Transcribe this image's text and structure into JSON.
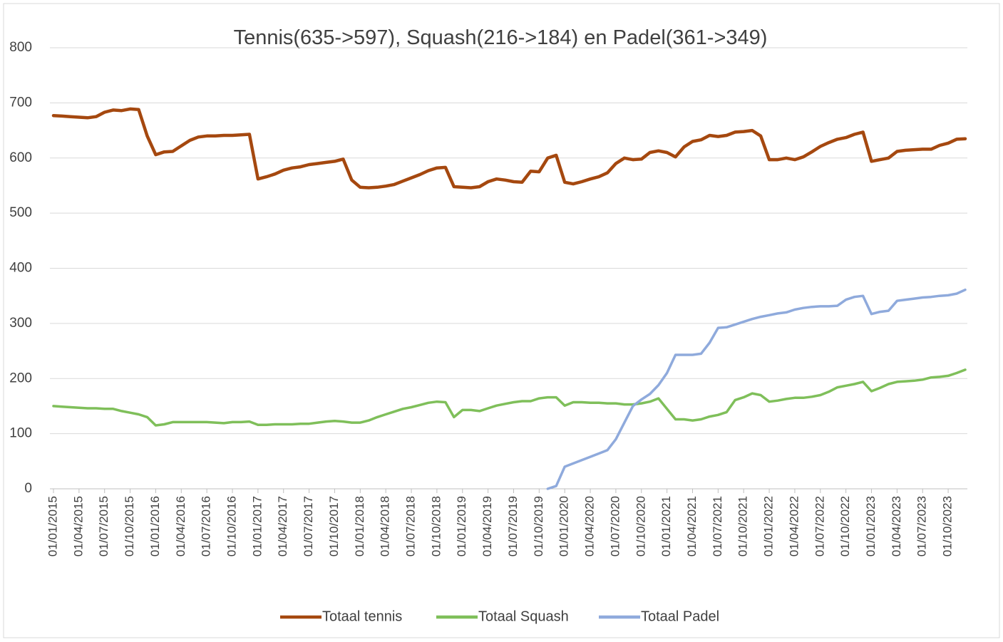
{
  "chart_data": {
    "type": "line",
    "title": "Tennis(635->597), Squash(216->184)  en Padel(361->349)",
    "x": [
      "01/01/2015",
      "01/02/2015",
      "01/03/2015",
      "01/04/2015",
      "01/05/2015",
      "01/06/2015",
      "01/07/2015",
      "01/08/2015",
      "01/09/2015",
      "01/10/2015",
      "01/11/2015",
      "01/12/2015",
      "01/01/2016",
      "01/02/2016",
      "01/03/2016",
      "01/04/2016",
      "01/05/2016",
      "01/06/2016",
      "01/07/2016",
      "01/08/2016",
      "01/09/2016",
      "01/10/2016",
      "01/11/2016",
      "01/12/2016",
      "01/01/2017",
      "01/02/2017",
      "01/03/2017",
      "01/04/2017",
      "01/05/2017",
      "01/06/2017",
      "01/07/2017",
      "01/08/2017",
      "01/09/2017",
      "01/10/2017",
      "01/11/2017",
      "01/12/2017",
      "01/01/2018",
      "01/02/2018",
      "01/03/2018",
      "01/04/2018",
      "01/05/2018",
      "01/06/2018",
      "01/07/2018",
      "01/08/2018",
      "01/09/2018",
      "01/10/2018",
      "01/11/2018",
      "01/12/2018",
      "01/01/2019",
      "01/02/2019",
      "01/03/2019",
      "01/04/2019",
      "01/05/2019",
      "01/06/2019",
      "01/07/2019",
      "01/08/2019",
      "01/09/2019",
      "01/10/2019",
      "01/11/2019",
      "01/12/2019",
      "01/01/2020",
      "01/02/2020",
      "01/03/2020",
      "01/04/2020",
      "01/05/2020",
      "01/06/2020",
      "01/07/2020",
      "01/08/2020",
      "01/09/2020",
      "01/10/2020",
      "01/11/2020",
      "01/12/2020",
      "01/01/2021",
      "01/02/2021",
      "01/03/2021",
      "01/04/2021",
      "01/05/2021",
      "01/06/2021",
      "01/07/2021",
      "01/08/2021",
      "01/09/2021",
      "01/10/2021",
      "01/11/2021",
      "01/12/2021",
      "01/01/2022",
      "01/02/2022",
      "01/03/2022",
      "01/04/2022",
      "01/05/2022",
      "01/06/2022",
      "01/07/2022",
      "01/08/2022",
      "01/09/2022",
      "01/10/2022",
      "01/11/2022",
      "01/12/2022",
      "01/01/2023",
      "01/02/2023",
      "01/03/2023",
      "01/04/2023",
      "01/05/2023",
      "01/06/2023",
      "01/07/2023",
      "01/08/2023",
      "01/09/2023",
      "01/10/2023",
      "01/11/2023",
      "01/12/2023"
    ],
    "xticks": [
      "01/01/2015",
      "01/04/2015",
      "01/07/2015",
      "01/10/2015",
      "01/01/2016",
      "01/04/2016",
      "01/07/2016",
      "01/10/2016",
      "01/01/2017",
      "01/04/2017",
      "01/07/2017",
      "01/10/2017",
      "01/01/2018",
      "01/04/2018",
      "01/07/2018",
      "01/10/2018",
      "01/01/2019",
      "01/04/2019",
      "01/07/2019",
      "01/10/2019",
      "01/01/2020",
      "01/04/2020",
      "01/07/2020",
      "01/10/2020",
      "01/01/2021",
      "01/04/2021",
      "01/07/2021",
      "01/10/2021",
      "01/01/2022",
      "01/04/2022",
      "01/07/2022",
      "01/10/2022",
      "01/01/2023",
      "01/04/2023",
      "01/07/2023",
      "01/10/2023"
    ],
    "ylim": [
      0,
      800
    ],
    "yticks": [
      0,
      100,
      200,
      300,
      400,
      500,
      600,
      700,
      800
    ],
    "grid": true,
    "legend": "bottom",
    "series": [
      {
        "name": "Totaal tennis",
        "color": "#a5480f",
        "values": [
          677,
          676,
          675,
          674,
          673,
          675,
          683,
          687,
          686,
          689,
          688,
          640,
          606,
          611,
          612,
          622,
          632,
          638,
          640,
          640,
          641,
          641,
          642,
          643,
          562,
          566,
          571,
          578,
          582,
          584,
          588,
          590,
          592,
          594,
          598,
          560,
          547,
          546,
          547,
          549,
          552,
          558,
          564,
          570,
          577,
          582,
          583,
          548,
          547,
          546,
          548,
          557,
          562,
          560,
          557,
          556,
          576,
          575,
          600,
          605,
          556,
          553,
          557,
          562,
          566,
          573,
          590,
          600,
          597,
          598,
          610,
          613,
          610,
          602,
          620,
          630,
          633,
          641,
          639,
          641,
          647,
          648,
          650,
          640,
          597,
          597,
          600,
          597,
          602,
          611,
          621,
          628,
          634,
          637,
          643,
          647,
          594,
          597,
          600,
          612,
          614,
          615,
          616,
          616,
          623,
          627,
          634,
          635
        ]
      },
      {
        "name": "Totaal Squash",
        "color": "#7fbf5a",
        "values": [
          150,
          149,
          148,
          147,
          146,
          146,
          145,
          145,
          141,
          138,
          135,
          130,
          115,
          117,
          121,
          121,
          121,
          121,
          121,
          120,
          119,
          121,
          121,
          122,
          116,
          116,
          117,
          117,
          117,
          118,
          118,
          120,
          122,
          123,
          122,
          120,
          120,
          124,
          130,
          135,
          140,
          145,
          148,
          152,
          156,
          158,
          157,
          130,
          143,
          143,
          141,
          146,
          151,
          154,
          157,
          159,
          159,
          164,
          166,
          166,
          151,
          157,
          157,
          156,
          156,
          155,
          155,
          153,
          153,
          155,
          158,
          164,
          145,
          126,
          126,
          124,
          126,
          131,
          134,
          139,
          161,
          166,
          173,
          170,
          158,
          160,
          163,
          165,
          165,
          167,
          170,
          176,
          184,
          187,
          190,
          194,
          177,
          183,
          190,
          194,
          195,
          196,
          198,
          202,
          203,
          205,
          210,
          216
        ]
      },
      {
        "name": "Totaal Padel",
        "color": "#8faadc",
        "values": [
          null,
          null,
          null,
          null,
          null,
          null,
          null,
          null,
          null,
          null,
          null,
          null,
          null,
          null,
          null,
          null,
          null,
          null,
          null,
          null,
          null,
          null,
          null,
          null,
          null,
          null,
          null,
          null,
          null,
          null,
          null,
          null,
          null,
          null,
          null,
          null,
          null,
          null,
          null,
          null,
          null,
          null,
          null,
          null,
          null,
          null,
          null,
          null,
          null,
          null,
          null,
          null,
          null,
          null,
          null,
          null,
          null,
          null,
          0,
          5,
          40,
          46,
          52,
          58,
          64,
          70,
          90,
          120,
          150,
          162,
          172,
          188,
          210,
          243,
          243,
          243,
          245,
          265,
          292,
          293,
          298,
          303,
          308,
          312,
          315,
          318,
          320,
          325,
          328,
          330,
          331,
          331,
          332,
          343,
          348,
          350,
          317,
          321,
          323,
          341,
          343,
          345,
          347,
          348,
          350,
          351,
          354,
          361
        ]
      }
    ]
  }
}
